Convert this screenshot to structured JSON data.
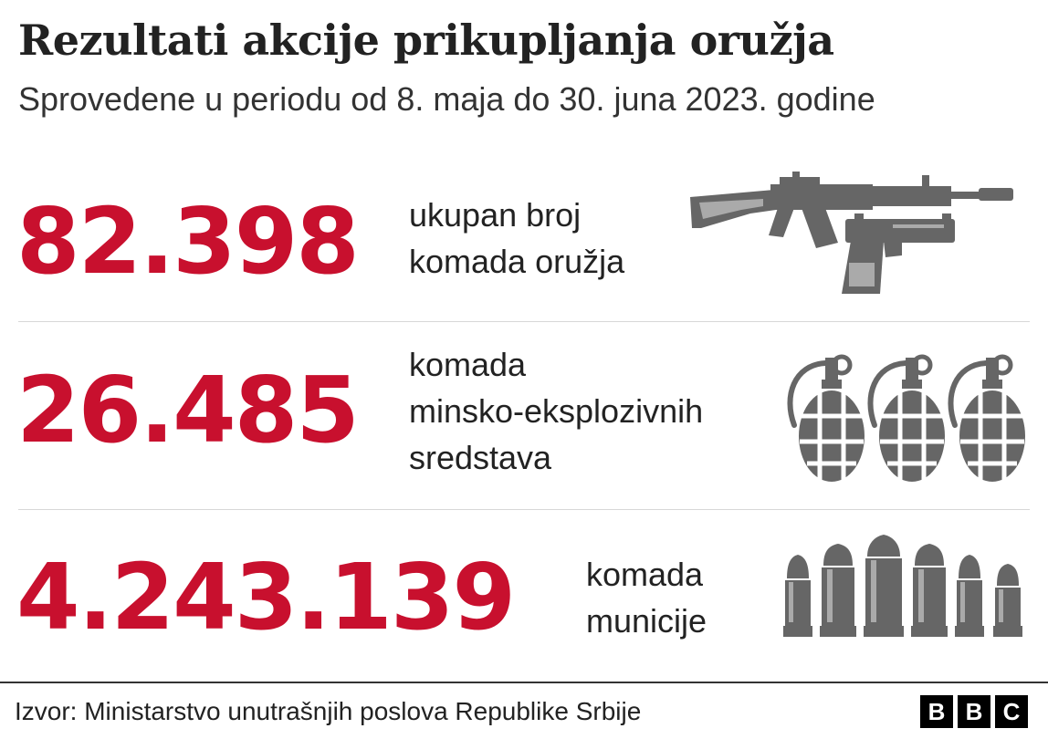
{
  "title": "Rezultati akcije prikupljanja oružja",
  "subtitle": "Sprovedene u periodu od 8. maja do 30. juna 2023. godine",
  "colors": {
    "accent": "#c8102e",
    "icon": "#666666",
    "text": "#222222"
  },
  "stats": [
    {
      "value": "82.398",
      "description_lines": [
        "ukupan broj",
        "komada oružja"
      ],
      "icon": "rifle-and-pistol-icon"
    },
    {
      "value": "26.485",
      "description_lines": [
        "komada",
        "minsko-eksplozivnih",
        "sredstava"
      ],
      "icon": "grenades-icon"
    },
    {
      "value": "4.243.139",
      "description_lines": [
        "komada",
        "municije"
      ],
      "icon": "bullets-icon"
    }
  ],
  "footer": {
    "source": "Izvor: Ministarstvo unutrašnjih poslova Republike Srbije",
    "logo_letters": [
      "B",
      "B",
      "C"
    ]
  }
}
